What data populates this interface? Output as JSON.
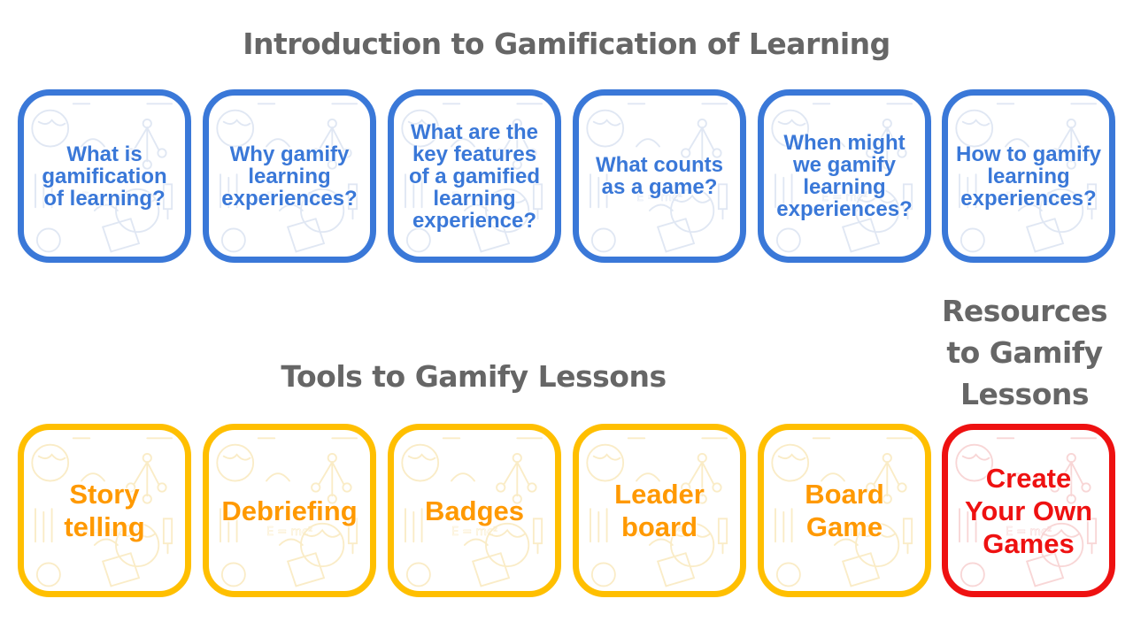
{
  "sections": {
    "intro_title": "Introduction to Gamification of Learning",
    "tools_title": "Tools to Gamify Lessons",
    "resources_title": "Resources to Gamify Lessons"
  },
  "intro_tiles": [
    {
      "label": "What is gamification of learning?"
    },
    {
      "label": "Why gamify learning experiences?"
    },
    {
      "label": "What are the key features of a gamified learning experience?"
    },
    {
      "label": "What counts as a game?"
    },
    {
      "label": "When might we gamify learning experiences?"
    },
    {
      "label": "How to gamify learning experiences?"
    }
  ],
  "tool_tiles": [
    {
      "label": "Story telling"
    },
    {
      "label": "Debriefing"
    },
    {
      "label": "Badges"
    },
    {
      "label": "Leader board"
    },
    {
      "label": "Board Game"
    }
  ],
  "resource_tiles": [
    {
      "label": "Create Your Own Games"
    }
  ],
  "colors": {
    "intro": "#3a78d8",
    "tools": "#ffbf00",
    "tools_text": "#ff9900",
    "resources": "#ee1111",
    "heading": "#666666"
  }
}
